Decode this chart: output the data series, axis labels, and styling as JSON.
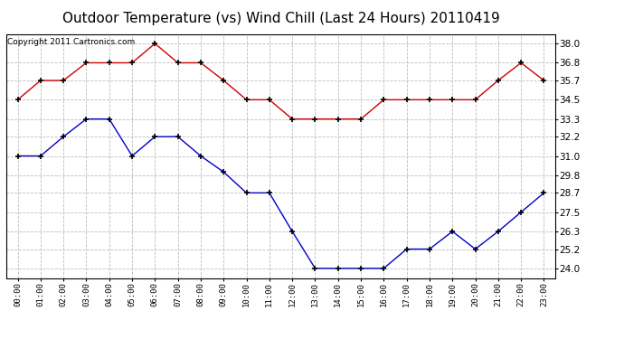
{
  "title": "Outdoor Temperature (vs) Wind Chill (Last 24 Hours) 20110419",
  "copyright": "Copyright 2011 Cartronics.com",
  "hours": [
    "00:00",
    "01:00",
    "02:00",
    "03:00",
    "04:00",
    "05:00",
    "06:00",
    "07:00",
    "08:00",
    "09:00",
    "10:00",
    "11:00",
    "12:00",
    "13:00",
    "14:00",
    "15:00",
    "16:00",
    "17:00",
    "18:00",
    "19:00",
    "20:00",
    "21:00",
    "22:00",
    "23:00"
  ],
  "temp": [
    34.5,
    35.7,
    35.7,
    36.8,
    36.8,
    36.8,
    38.0,
    36.8,
    36.8,
    35.7,
    34.5,
    34.5,
    33.3,
    33.3,
    33.3,
    33.3,
    34.5,
    34.5,
    34.5,
    34.5,
    34.5,
    35.7,
    36.8,
    35.7
  ],
  "wind_chill": [
    31.0,
    31.0,
    32.2,
    33.3,
    33.3,
    31.0,
    32.2,
    32.2,
    31.0,
    30.0,
    28.7,
    28.7,
    26.3,
    24.0,
    24.0,
    24.0,
    24.0,
    25.2,
    25.2,
    26.3,
    25.2,
    26.3,
    27.5,
    28.7
  ],
  "temp_color": "#cc0000",
  "wind_chill_color": "#0000cc",
  "yticks": [
    24.0,
    25.2,
    26.3,
    27.5,
    28.7,
    29.8,
    31.0,
    32.2,
    33.3,
    34.5,
    35.7,
    36.8,
    38.0
  ],
  "ylim": [
    23.4,
    38.6
  ],
  "bg_color": "#ffffff",
  "plot_bg_color": "#ffffff",
  "grid_color": "#bbbbbb",
  "title_fontsize": 11,
  "copyright_fontsize": 6.5,
  "markersize": 4
}
